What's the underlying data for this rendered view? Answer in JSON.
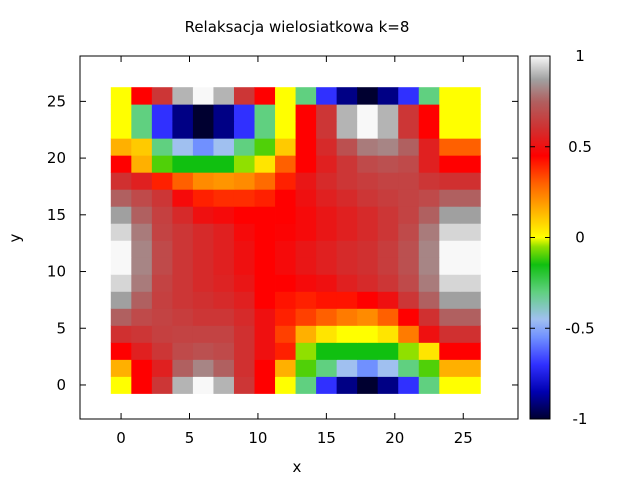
{
  "chart_data": {
    "type": "heatmap",
    "title": "Relaksacja wielosiatkowa k=8",
    "xlabel": "x",
    "ylabel": "y",
    "xlim": [
      -3,
      29
    ],
    "ylim": [
      -3,
      29
    ],
    "x_ticks": [
      0,
      5,
      10,
      15,
      20,
      25
    ],
    "y_ticks": [
      0,
      5,
      10,
      15,
      20,
      25
    ],
    "grid_x_range": [
      0,
      26
    ],
    "grid_y_range": [
      0,
      26
    ],
    "cell_step": 1.5,
    "color_range": [
      -1,
      1
    ],
    "colorbar_ticks": [
      -1,
      -0.5,
      0,
      0.5,
      1
    ],
    "colorbar_tick_labels": [
      "-1",
      "-0.5",
      "0",
      "0.5",
      "1"
    ],
    "palette": [
      {
        "v": -1.0,
        "color": "#000030"
      },
      {
        "v": -0.85,
        "color": "#0000b0"
      },
      {
        "v": -0.7,
        "color": "#3030ff"
      },
      {
        "v": -0.55,
        "color": "#7090ff"
      },
      {
        "v": -0.45,
        "color": "#a0c0f0"
      },
      {
        "v": -0.3,
        "color": "#60d080"
      },
      {
        "v": -0.15,
        "color": "#10c010"
      },
      {
        "v": -0.05,
        "color": "#90e000"
      },
      {
        "v": 0.0,
        "color": "#ffff00"
      },
      {
        "v": 0.15,
        "color": "#ffb000"
      },
      {
        "v": 0.3,
        "color": "#ff6000"
      },
      {
        "v": 0.45,
        "color": "#ff0000"
      },
      {
        "v": 0.6,
        "color": "#d03030"
      },
      {
        "v": 0.75,
        "color": "#b06060"
      },
      {
        "v": 0.87,
        "color": "#a0a0a0"
      },
      {
        "v": 1.0,
        "color": "#f8f8f8"
      }
    ],
    "cells": [
      [
        0.0,
        0.45,
        0.62,
        0.9,
        1.0,
        0.9,
        0.62,
        0.45,
        0.0,
        -0.3,
        -0.7,
        -0.9,
        -1.0,
        -0.9,
        -0.7,
        -0.3,
        0.0,
        0.0
      ],
      [
        0.15,
        0.45,
        0.55,
        0.75,
        0.82,
        0.75,
        0.6,
        0.45,
        0.15,
        -0.1,
        -0.3,
        -0.45,
        -0.55,
        -0.45,
        -0.3,
        -0.1,
        0.15,
        0.15
      ],
      [
        0.45,
        0.55,
        0.62,
        0.68,
        0.7,
        0.68,
        0.6,
        0.5,
        0.4,
        -0.05,
        -0.15,
        -0.15,
        -0.15,
        -0.15,
        -0.05,
        0.05,
        0.45,
        0.45
      ],
      [
        0.6,
        0.62,
        0.65,
        0.66,
        0.66,
        0.66,
        0.6,
        0.5,
        0.35,
        0.15,
        0.05,
        0.0,
        0.0,
        0.05,
        0.25,
        0.5,
        0.6,
        0.6
      ],
      [
        0.75,
        0.68,
        0.66,
        0.64,
        0.62,
        0.62,
        0.58,
        0.5,
        0.4,
        0.35,
        0.3,
        0.25,
        0.22,
        0.3,
        0.45,
        0.6,
        0.75,
        0.75
      ],
      [
        0.87,
        0.75,
        0.65,
        0.62,
        0.6,
        0.58,
        0.55,
        0.45,
        0.42,
        0.4,
        0.42,
        0.42,
        0.45,
        0.5,
        0.62,
        0.75,
        0.87,
        0.87
      ],
      [
        0.95,
        0.8,
        0.66,
        0.62,
        0.58,
        0.56,
        0.52,
        0.45,
        0.45,
        0.48,
        0.5,
        0.55,
        0.58,
        0.62,
        0.68,
        0.8,
        0.95,
        0.95
      ],
      [
        1.0,
        0.82,
        0.68,
        0.62,
        0.58,
        0.55,
        0.5,
        0.45,
        0.48,
        0.52,
        0.55,
        0.58,
        0.6,
        0.64,
        0.7,
        0.82,
        1.0,
        1.0
      ],
      [
        1.0,
        0.82,
        0.68,
        0.62,
        0.58,
        0.55,
        0.5,
        0.45,
        0.48,
        0.52,
        0.55,
        0.58,
        0.6,
        0.64,
        0.7,
        0.82,
        1.0,
        1.0
      ],
      [
        0.95,
        0.8,
        0.66,
        0.62,
        0.58,
        0.55,
        0.48,
        0.45,
        0.46,
        0.48,
        0.52,
        0.55,
        0.58,
        0.62,
        0.68,
        0.8,
        0.95,
        0.95
      ],
      [
        0.87,
        0.75,
        0.65,
        0.58,
        0.5,
        0.48,
        0.45,
        0.45,
        0.45,
        0.48,
        0.52,
        0.55,
        0.58,
        0.62,
        0.66,
        0.75,
        0.87,
        0.87
      ],
      [
        0.75,
        0.68,
        0.62,
        0.48,
        0.4,
        0.38,
        0.38,
        0.4,
        0.45,
        0.5,
        0.55,
        0.58,
        0.62,
        0.64,
        0.66,
        0.68,
        0.75,
        0.75
      ],
      [
        0.6,
        0.55,
        0.4,
        0.3,
        0.22,
        0.2,
        0.22,
        0.28,
        0.4,
        0.52,
        0.58,
        0.62,
        0.64,
        0.66,
        0.66,
        0.62,
        0.6,
        0.6
      ],
      [
        0.45,
        0.15,
        -0.1,
        -0.15,
        -0.15,
        -0.15,
        -0.05,
        0.05,
        0.3,
        0.45,
        0.55,
        0.62,
        0.68,
        0.7,
        0.68,
        0.55,
        0.45,
        0.45
      ],
      [
        0.15,
        0.1,
        -0.3,
        -0.45,
        -0.55,
        -0.45,
        -0.3,
        -0.1,
        0.1,
        0.45,
        0.58,
        0.7,
        0.8,
        0.82,
        0.75,
        0.55,
        0.3,
        0.3
      ],
      [
        0.0,
        -0.3,
        -0.7,
        -0.9,
        -1.0,
        -0.9,
        -0.7,
        -0.3,
        0.0,
        0.45,
        0.62,
        0.9,
        1.0,
        0.9,
        0.62,
        0.45,
        0.0,
        0.0
      ],
      [
        0.0,
        -0.3,
        -0.7,
        -0.9,
        -1.0,
        -0.9,
        -0.7,
        -0.3,
        0.0,
        0.45,
        0.62,
        0.9,
        1.0,
        0.9,
        0.62,
        0.45,
        0.0,
        0.0
      ],
      [
        0.0,
        0.45,
        0.62,
        0.9,
        1.0,
        0.9,
        0.62,
        0.45,
        0.0,
        -0.3,
        -0.7,
        -0.9,
        -1.0,
        -0.9,
        -0.7,
        -0.3,
        0.0,
        0.0
      ]
    ]
  }
}
